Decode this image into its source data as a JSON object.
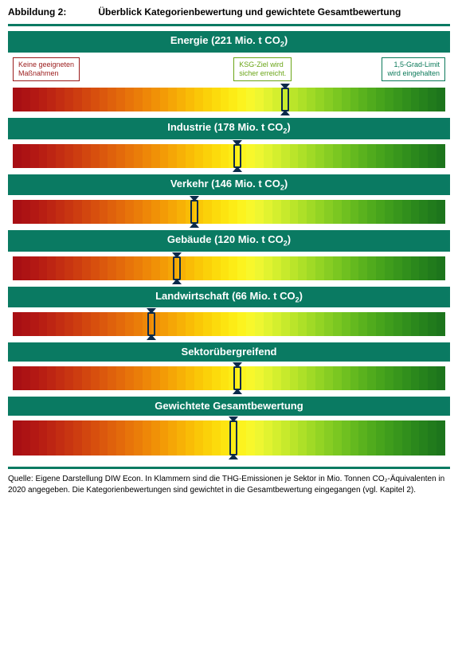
{
  "title_lead": "Abbildung 2:",
  "title_rest": "Überblick Kategorienbewertung und gewichtete Gesamtbewertung",
  "frame_border_color": "#0a7a62",
  "header_bg": "#0a7a62",
  "header_text_color": "#ffffff",
  "marker_color": "#0b2a4a",
  "bar_colors": [
    "#a80f14",
    "#ad1314",
    "#b31814",
    "#b81e13",
    "#bd2513",
    "#c32d12",
    "#c83511",
    "#cd3d10",
    "#d2460f",
    "#d74f0e",
    "#db580d",
    "#df610c",
    "#e36a0b",
    "#e7740a",
    "#ea7d09",
    "#ee8708",
    "#f09107",
    "#f39b06",
    "#f5a606",
    "#f7b106",
    "#f9bc06",
    "#fac707",
    "#fbd109",
    "#fcdb0c",
    "#fde410",
    "#fdec16",
    "#fcf31f",
    "#f8f72b",
    "#eef631",
    "#e1f330",
    "#d4ef2e",
    "#c7ea2c",
    "#bae52a",
    "#ade028",
    "#a0da26",
    "#93d424",
    "#87cd23",
    "#7bc721",
    "#6fc020",
    "#64b91f",
    "#5ab21e",
    "#50ab1d",
    "#47a41c",
    "#3f9d1c",
    "#38961c",
    "#318f1c",
    "#2b881c",
    "#26821c",
    "#217b1c",
    "#1d751c"
  ],
  "bar_height_normal": 30,
  "bar_height_large": 44,
  "legend": {
    "left": "Keine geeigneten\nMaßnahmen",
    "mid": "KSG-Ziel wird\nsicher erreicht.",
    "right": "1,5-Grad-Limit\nwird eingehalten"
  },
  "sections": [
    {
      "id": "energie",
      "label_pre": "Energie (221 Mio. t CO",
      "label_post": ")",
      "marker_pct": 63,
      "show_legend": true,
      "large": false
    },
    {
      "id": "industrie",
      "label_pre": "Industrie (178 Mio. t CO",
      "label_post": ")",
      "marker_pct": 52,
      "show_legend": false,
      "large": false
    },
    {
      "id": "verkehr",
      "label_pre": "Verkehr (146 Mio. t CO",
      "label_post": ")",
      "marker_pct": 42,
      "show_legend": false,
      "large": false
    },
    {
      "id": "gebaeude",
      "label_pre": "Gebäude (120 Mio. t CO",
      "label_post": ")",
      "marker_pct": 38,
      "show_legend": false,
      "large": false
    },
    {
      "id": "landwirtschaft",
      "label_pre": "Landwirtschaft (66 Mio. t CO",
      "label_post": ")",
      "marker_pct": 32,
      "show_legend": false,
      "large": false
    },
    {
      "id": "sektor",
      "label_pre": "Sektorübergreifend",
      "label_post": "",
      "marker_pct": 52,
      "show_legend": false,
      "large": false,
      "no_sub": true
    },
    {
      "id": "gesamt",
      "label_pre": "Gewichtete Gesamtbewertung",
      "label_post": "",
      "marker_pct": 51,
      "show_legend": false,
      "large": true,
      "no_sub": true
    }
  ],
  "source": "Quelle: Eigene Darstellung DIW Econ. In Klammern sind die THG-Emissionen je Sektor in Mio. Tonnen CO₂-Äquivalenten in 2020 angegeben. Die Kategorienbewertungen sind gewichtet in die Gesamtbewertung eingegangen (vgl. Kapitel 2)."
}
